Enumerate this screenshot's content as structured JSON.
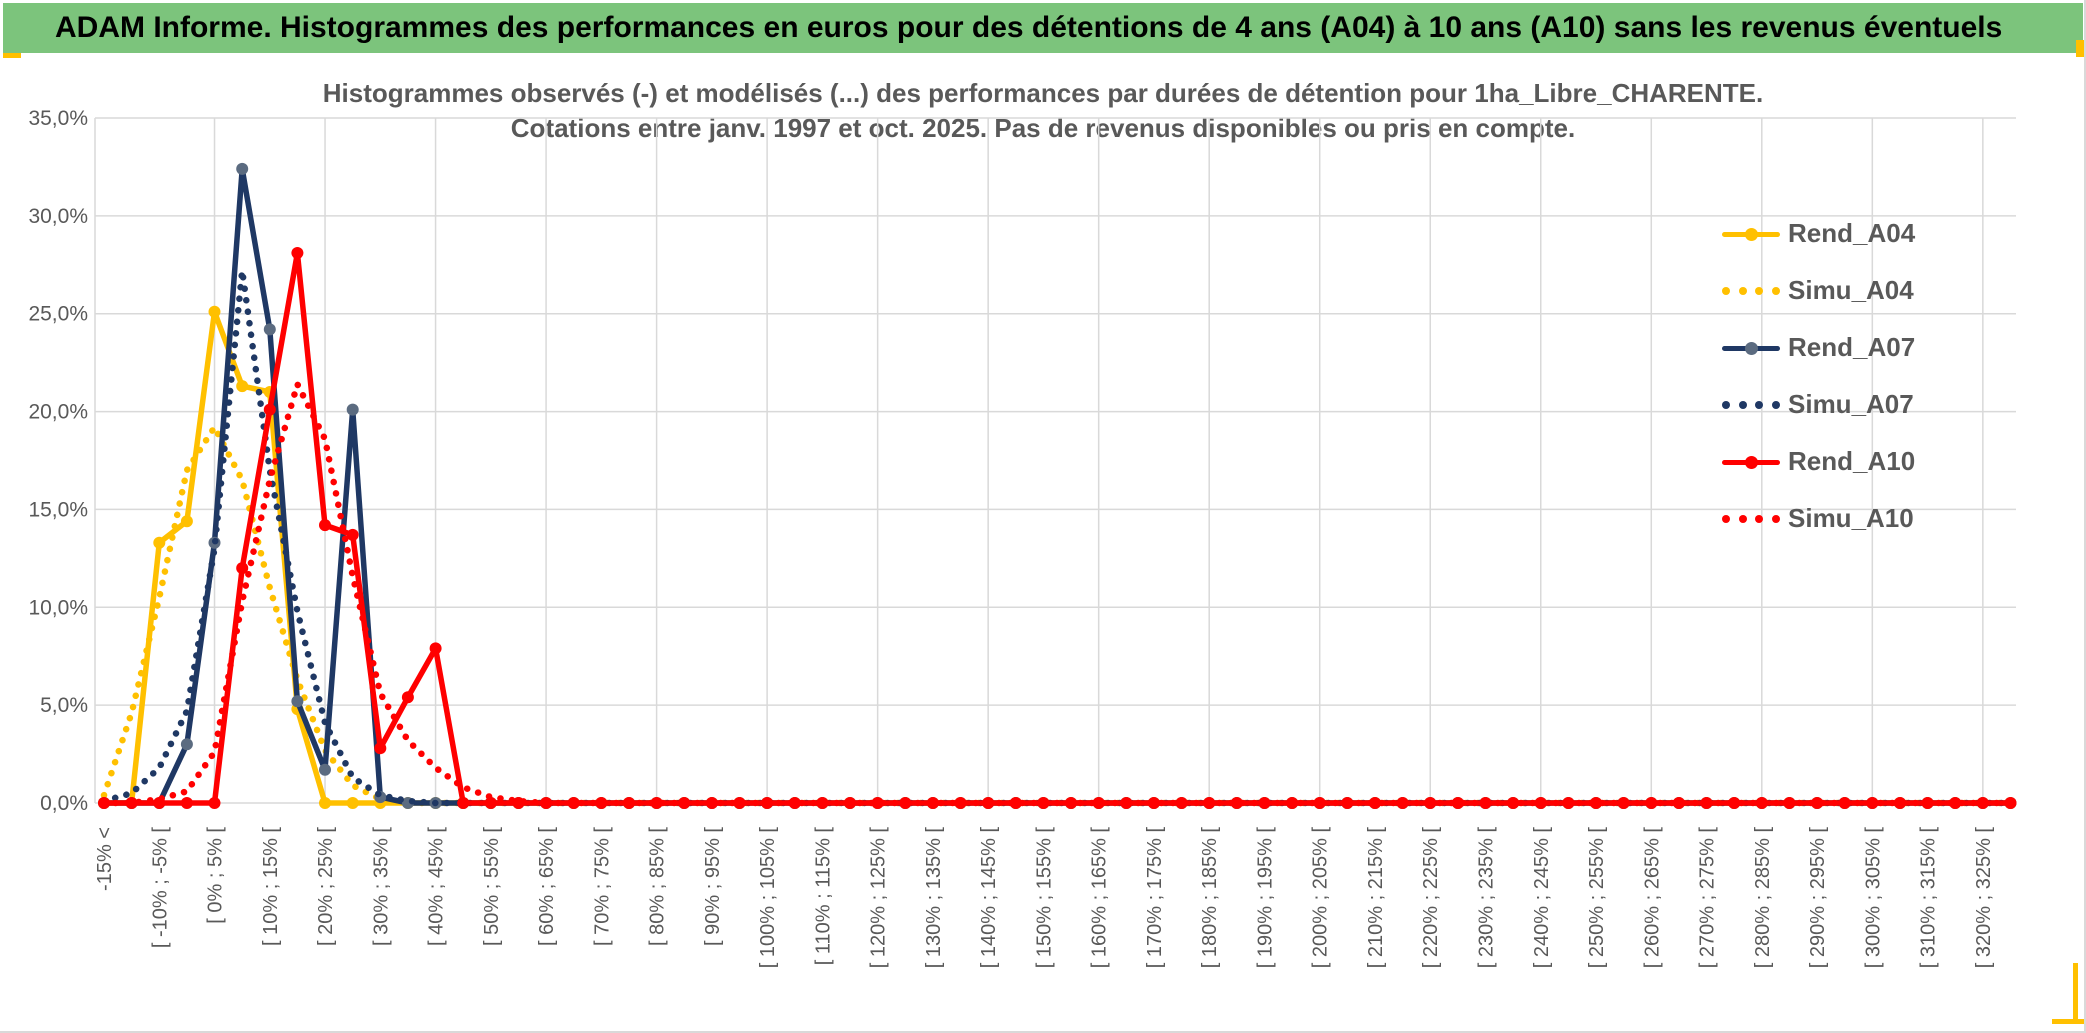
{
  "header": {
    "title": "ADAM Informe. Histogrammes des performances en euros pour des détentions de 4 ans (A04) à 10 ans (A10) sans les revenus éventuels"
  },
  "colors": {
    "header_bg": "#7cc47c",
    "accent_orange": "#ffc000",
    "grid": "#d9d9d9",
    "text_gray": "#595959",
    "gold": "#FFC000",
    "navy": "#1F3864",
    "navy_marker": "#5B6B80",
    "red": "#FF0000"
  },
  "chart_data": {
    "type": "line",
    "title_line1": "Histogrammes observés (-) et modélisés (...) des performances par durées de détention pour 1ha_Libre_CHARENTE.",
    "title_line2": "Cotations entre janv. 1997 et oct. 2025. Pas de revenus disponibles ou pris en compte.",
    "grid": true,
    "legend_position": "right-inside",
    "y_axis": {
      "min": 0,
      "max": 35,
      "step": 5,
      "tick_labels": [
        "0,0%",
        "5,0%",
        "10,0%",
        "15,0%",
        "20,0%",
        "25,0%",
        "30,0%",
        "35,0%"
      ]
    },
    "x_axis": {
      "n_bins": 70,
      "tick_every": 2,
      "labels": [
        "-15% <",
        "[ -10% ; -5% [",
        "[ 0% ; 5% [",
        "[ 10% ; 15% [",
        "[ 20% ; 25% [",
        "[ 30% ; 35% [",
        "[ 40% ; 45% [",
        "[ 50% ; 55% [",
        "[ 60% ; 65% [",
        "[ 70% ; 75% [",
        "[ 80% ; 85% [",
        "[ 90% ; 95% [",
        "[ 100% ; 105% [",
        "[ 110% ; 115% [",
        "[ 120% ; 125% [",
        "[ 130% ; 135% [",
        "[ 140% ; 145% [",
        "[ 150% ; 155% [",
        "[ 160% ; 165% [",
        "[ 170% ; 175% [",
        "[ 180% ; 185% [",
        "[ 190% ; 195% [",
        "[ 200% ; 205% [",
        "[ 210% ; 215% [",
        "[ 220% ; 225% [",
        "[ 230% ; 235% [",
        "[ 240% ; 245% [",
        "[ 250% ; 255% [",
        "[ 260% ; 265% [",
        "[ 270% ; 275% [",
        "[ 280% ; 285% [",
        "[ 290% ; 295% [",
        "[ 300% ; 305% [",
        "[ 310% ; 315% [",
        "[ 320% ; 325% ["
      ]
    },
    "series": [
      {
        "name": "Rend_A04",
        "style": "solid",
        "color": "#FFC000",
        "marker_color": "#FFC000",
        "values": [
          0,
          0,
          13.3,
          14.4,
          25.1,
          21.3,
          21.0,
          4.8,
          0,
          0
        ]
      },
      {
        "name": "Simu_A04",
        "style": "dotted",
        "color": "#FFC000",
        "values": [
          0.4,
          4.6,
          10.5,
          17.0,
          19.2,
          16.5,
          11.0,
          6.3,
          2.7,
          0.9,
          0.2,
          0
        ]
      },
      {
        "name": "Rend_A07",
        "style": "solid",
        "color": "#1F3864",
        "marker_color": "#5B6B80",
        "values": [
          0,
          0,
          0,
          3.0,
          13.3,
          32.4,
          24.2,
          5.2,
          1.7,
          20.1,
          0.3,
          0
        ]
      },
      {
        "name": "Simu_A07",
        "style": "dotted",
        "color": "#1F3864",
        "values": [
          0.1,
          0.5,
          1.8,
          4.7,
          13.0,
          27.2,
          17.0,
          9.8,
          4.1,
          1.3,
          0.4,
          0.1,
          0
        ]
      },
      {
        "name": "Rend_A10",
        "style": "solid",
        "color": "#FF0000",
        "marker_color": "#FF0000",
        "values": [
          0,
          0,
          0,
          0,
          0,
          12.0,
          20.1,
          28.1,
          14.2,
          13.7,
          2.8,
          5.4,
          7.9,
          0,
          0
        ]
      },
      {
        "name": "Simu_A10",
        "style": "dotted",
        "color": "#FF0000",
        "values": [
          0,
          0,
          0.2,
          0.6,
          2.6,
          10.3,
          16.5,
          21.4,
          18.6,
          11.6,
          5.6,
          3.2,
          1.8,
          0.8,
          0.3,
          0.1,
          0
        ]
      }
    ]
  }
}
